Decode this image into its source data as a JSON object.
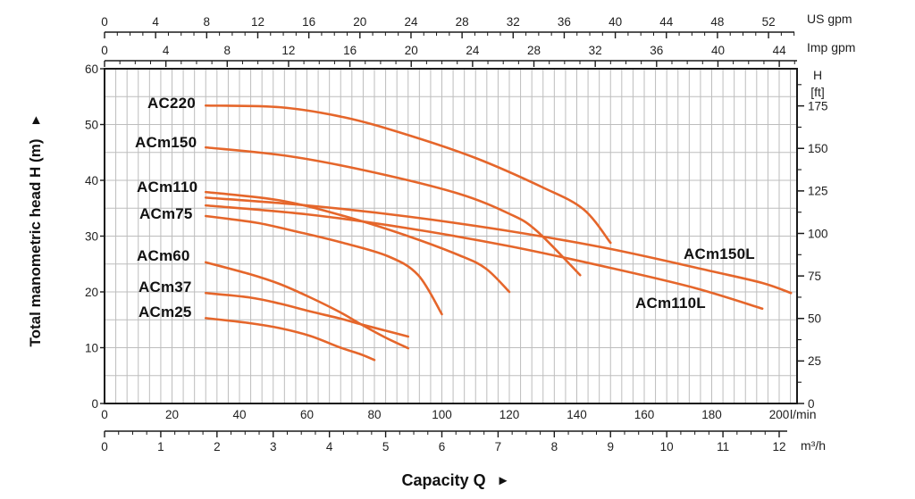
{
  "chart_data": {
    "type": "line",
    "title": "",
    "xlabel": "Capacity Q",
    "ylabel": "Total manometric head H (m)",
    "legend_position": "inline-labels",
    "grid": true,
    "axis_labels": {
      "us_gpm": "US gpm",
      "imp_gpm": "Imp gpm",
      "head_ft_line1": "H",
      "head_ft_line2": "[ft]",
      "l_min": "l/min",
      "m3_h": "m³/h",
      "capacity": "Capacity Q",
      "capacity_arrow": "►",
      "head": "Total manometric head H (m)",
      "head_arrow": "▲"
    },
    "x_axes": {
      "us_gpm": {
        "ticks": [
          0,
          4,
          8,
          12,
          16,
          20,
          24,
          28,
          32,
          36,
          40,
          44,
          48,
          52
        ]
      },
      "imp_gpm": {
        "ticks": [
          0,
          4,
          8,
          12,
          16,
          20,
          24,
          28,
          32,
          36,
          40,
          44
        ]
      },
      "l_min": {
        "ticks": [
          0,
          20,
          40,
          60,
          80,
          100,
          120,
          140,
          160,
          180,
          200
        ],
        "range": [
          0,
          200
        ]
      },
      "m3_h": {
        "ticks": [
          0,
          1,
          2,
          3,
          4,
          5,
          6,
          7,
          8,
          9,
          10,
          11,
          12
        ],
        "range": [
          0,
          12
        ]
      }
    },
    "y_axes": {
      "m": {
        "ticks": [
          0,
          10,
          20,
          30,
          40,
          50,
          60
        ],
        "range": [
          0,
          60
        ]
      },
      "ft": {
        "ticks": [
          0,
          25,
          50,
          75,
          100,
          125,
          150,
          175
        ]
      }
    },
    "series": [
      {
        "name": "AC220",
        "points": [
          [
            30,
            53.4
          ],
          [
            52,
            53.1
          ],
          [
            71,
            51.3
          ],
          [
            89,
            48.3
          ],
          [
            110,
            44.0
          ],
          [
            130,
            38.7
          ],
          [
            142,
            34.8
          ],
          [
            150,
            28.8
          ]
        ]
      },
      {
        "name": "ACm150",
        "points": [
          [
            30,
            45.9
          ],
          [
            55,
            44.3
          ],
          [
            80,
            41.4
          ],
          [
            105,
            37.6
          ],
          [
            120,
            34.0
          ],
          [
            128,
            31.0
          ],
          [
            141,
            23.0
          ]
        ]
      },
      {
        "name": "ACm110",
        "points": [
          [
            30,
            37.9
          ],
          [
            52,
            36.4
          ],
          [
            71,
            33.6
          ],
          [
            89,
            30.2
          ],
          [
            105,
            26.6
          ],
          [
            113,
            24.2
          ],
          [
            120,
            20.0
          ]
        ]
      },
      {
        "name": "ACm75",
        "points": [
          [
            30,
            33.6
          ],
          [
            45,
            32.4
          ],
          [
            57,
            30.8
          ],
          [
            70,
            28.9
          ],
          [
            84,
            26.4
          ],
          [
            93,
            23.0
          ],
          [
            100,
            16.0
          ]
        ]
      },
      {
        "name": "ACm60",
        "points": [
          [
            30,
            25.3
          ],
          [
            43,
            23.2
          ],
          [
            52,
            21.4
          ],
          [
            61,
            19.0
          ],
          [
            70,
            16.3
          ],
          [
            76,
            14.2
          ],
          [
            83,
            11.9
          ],
          [
            90,
            9.9
          ]
        ]
      },
      {
        "name": "ACm37",
        "points": [
          [
            30,
            19.8
          ],
          [
            43,
            19.0
          ],
          [
            52,
            17.9
          ],
          [
            61,
            16.5
          ],
          [
            70,
            15.2
          ],
          [
            76,
            14.2
          ],
          [
            83,
            13.1
          ],
          [
            90,
            12.0
          ]
        ]
      },
      {
        "name": "ACm25",
        "points": [
          [
            30,
            15.3
          ],
          [
            43,
            14.4
          ],
          [
            52,
            13.5
          ],
          [
            61,
            12.1
          ],
          [
            70,
            10.0
          ],
          [
            76,
            8.8
          ],
          [
            80,
            7.8
          ]
        ]
      },
      {
        "name": "ACm150L",
        "points": [
          [
            30,
            36.9
          ],
          [
            60,
            35.5
          ],
          [
            90,
            33.5
          ],
          [
            120,
            30.9
          ],
          [
            150,
            27.7
          ],
          [
            180,
            23.7
          ],
          [
            195,
            21.6
          ],
          [
            203.5,
            19.8
          ]
        ]
      },
      {
        "name": "ACm110L",
        "points": [
          [
            30,
            35.5
          ],
          [
            60,
            33.9
          ],
          [
            90,
            31.4
          ],
          [
            120,
            28.2
          ],
          [
            150,
            24.3
          ],
          [
            175,
            20.7
          ],
          [
            195,
            17.0
          ]
        ]
      }
    ],
    "colors": {
      "curve": "#E5662B",
      "grid": "#bdbdbd",
      "axis": "#1a1a1a",
      "text": "#1f1f1f"
    }
  }
}
